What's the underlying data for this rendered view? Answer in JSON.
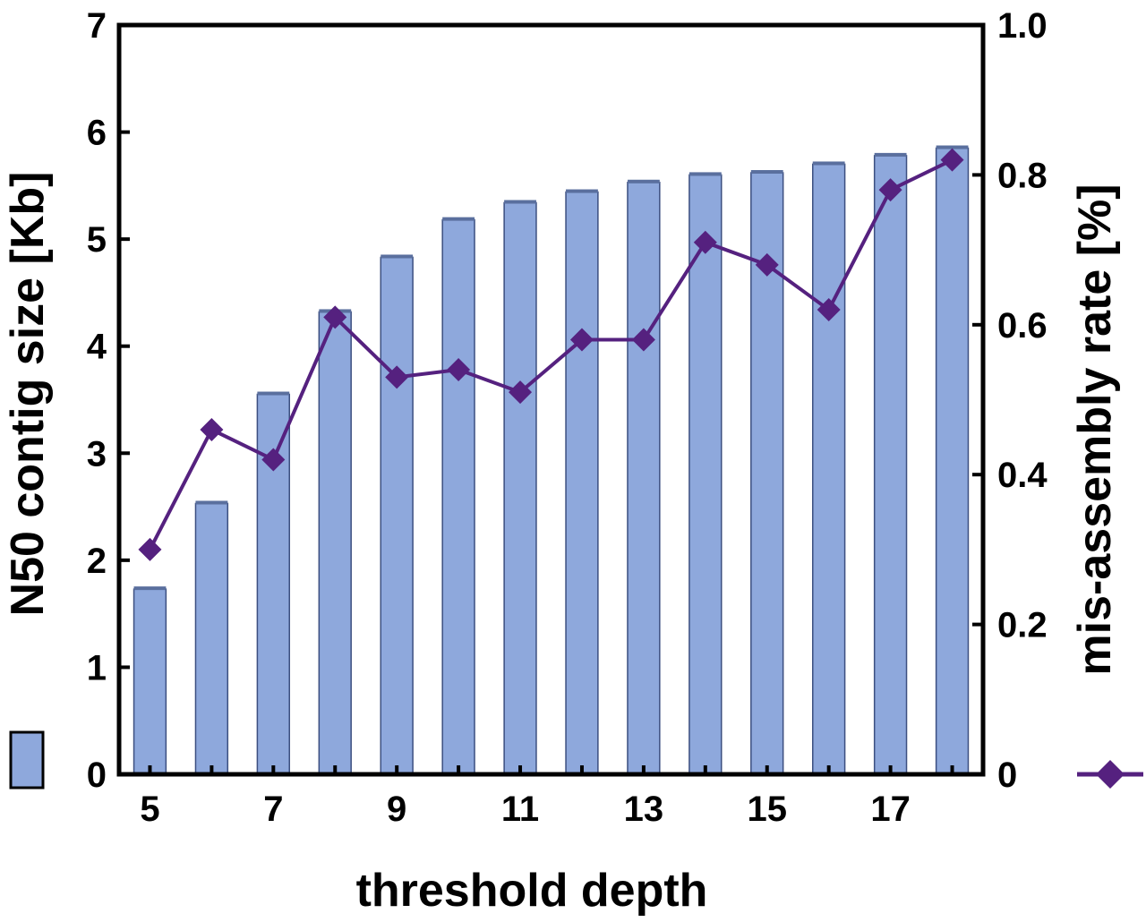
{
  "chart_data": {
    "type": "bar",
    "xlabel": "threshold depth",
    "x": [
      5,
      6,
      7,
      8,
      9,
      10,
      11,
      12,
      13,
      14,
      15,
      16,
      17,
      18
    ],
    "x_tick_labels": [
      "5",
      "7",
      "9",
      "11",
      "13",
      "15",
      "17"
    ],
    "grid": false,
    "series": [
      {
        "type": "bar",
        "axis": "left",
        "color": "#8EA8DC",
        "values": [
          1.73,
          2.53,
          3.55,
          4.32,
          4.83,
          5.18,
          5.34,
          5.44,
          5.53,
          5.6,
          5.62,
          5.7,
          5.78,
          5.85
        ]
      },
      {
        "type": "line",
        "axis": "right",
        "marker": "diamond",
        "color": "#55217F",
        "values": [
          0.3,
          0.46,
          0.42,
          0.61,
          0.53,
          0.54,
          0.51,
          0.58,
          0.58,
          0.71,
          0.68,
          0.62,
          0.78,
          0.82
        ]
      }
    ],
    "y_left": {
      "label": "N50 contig size [Kb]",
      "range": [
        0,
        7
      ],
      "ticks": [
        "0",
        "1",
        "2",
        "3",
        "4",
        "5",
        "6",
        "7"
      ]
    },
    "y_right": {
      "label": "mis-assembly rate [%]",
      "range": [
        0,
        1.0
      ],
      "ticks": [
        "0",
        "0.2",
        "0.4",
        "0.6",
        "0.8",
        "1.0"
      ]
    },
    "legend": "beside-axis-titles"
  }
}
